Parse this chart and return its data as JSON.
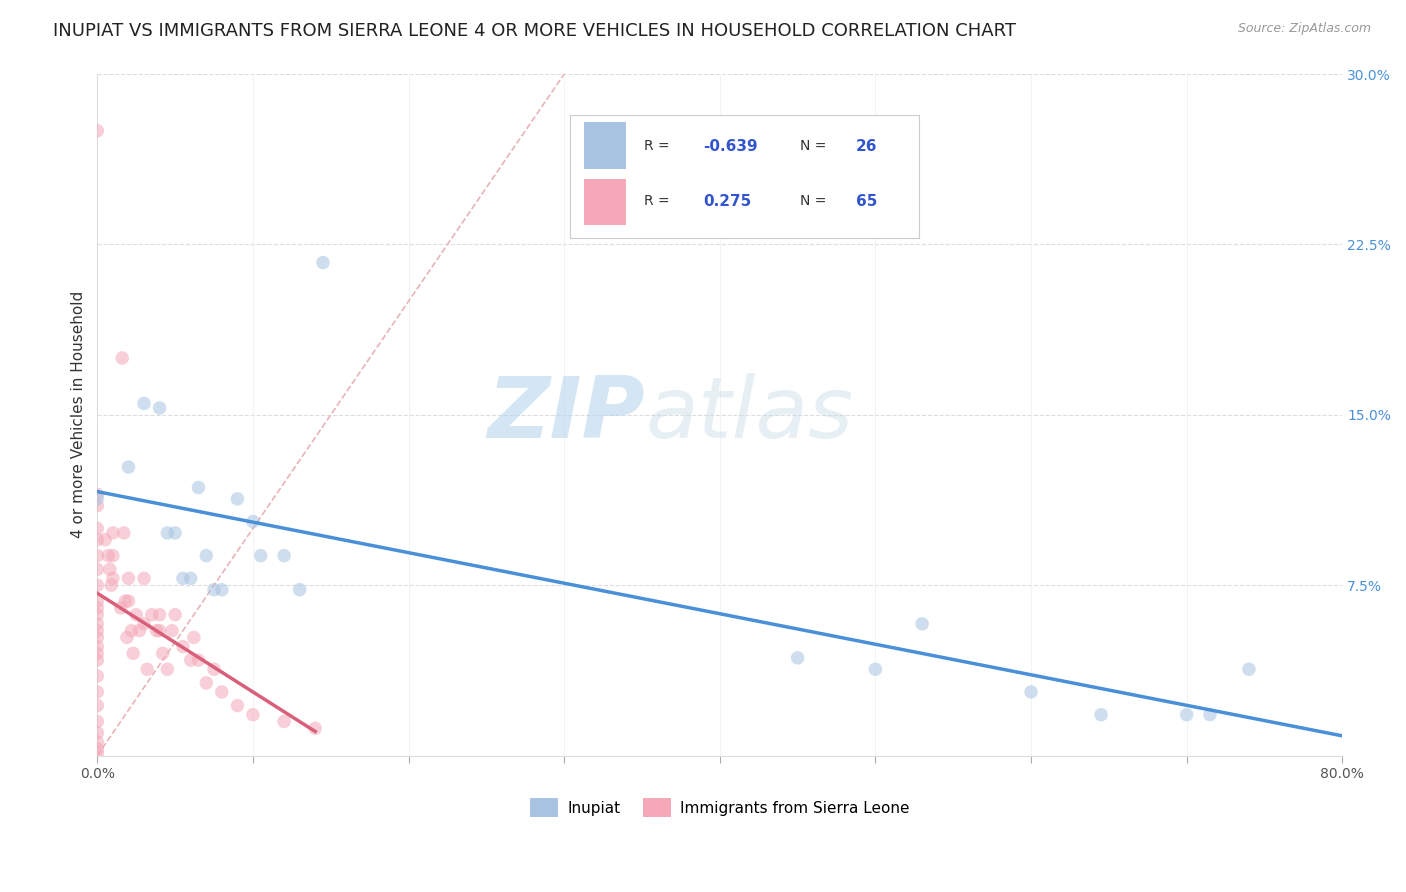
{
  "title": "INUPIAT VS IMMIGRANTS FROM SIERRA LEONE 4 OR MORE VEHICLES IN HOUSEHOLD CORRELATION CHART",
  "source": "Source: ZipAtlas.com",
  "ylabel": "4 or more Vehicles in Household",
  "xlim": [
    0.0,
    0.8
  ],
  "ylim": [
    0.0,
    0.3
  ],
  "xticks": [
    0.0,
    0.1,
    0.2,
    0.3,
    0.4,
    0.5,
    0.6,
    0.7,
    0.8
  ],
  "xticklabels": [
    "0.0%",
    "",
    "",
    "",
    "",
    "",
    "",
    "",
    "80.0%"
  ],
  "yticks_right": [
    0.0,
    0.075,
    0.15,
    0.225,
    0.3
  ],
  "yticklabels_right": [
    "",
    "7.5%",
    "15.0%",
    "22.5%",
    "30.0%"
  ],
  "inupiat_color": "#a8c4e0",
  "sierra_color": "#f4a8b8",
  "inupiat_line_color": "#4a90d9",
  "sierra_line_color": "#d9607a",
  "diagonal_color": "#e8b4b8",
  "inupiat_x": [
    0.0,
    0.02,
    0.03,
    0.04,
    0.045,
    0.05,
    0.055,
    0.06,
    0.065,
    0.07,
    0.075,
    0.08,
    0.09,
    0.1,
    0.105,
    0.12,
    0.13,
    0.145,
    0.45,
    0.5,
    0.53,
    0.6,
    0.645,
    0.7,
    0.715,
    0.74
  ],
  "inupiat_y": [
    0.113,
    0.127,
    0.155,
    0.153,
    0.098,
    0.098,
    0.078,
    0.078,
    0.118,
    0.088,
    0.073,
    0.073,
    0.113,
    0.103,
    0.088,
    0.088,
    0.073,
    0.217,
    0.043,
    0.038,
    0.058,
    0.028,
    0.018,
    0.018,
    0.018,
    0.038
  ],
  "sierra_x": [
    0.0,
    0.0,
    0.0,
    0.0,
    0.0,
    0.0,
    0.0,
    0.0,
    0.0,
    0.0,
    0.0,
    0.0,
    0.0,
    0.0,
    0.0,
    0.0,
    0.0,
    0.0,
    0.0,
    0.0,
    0.0,
    0.0,
    0.0,
    0.0,
    0.0,
    0.005,
    0.007,
    0.008,
    0.009,
    0.01,
    0.01,
    0.01,
    0.015,
    0.016,
    0.017,
    0.018,
    0.019,
    0.02,
    0.02,
    0.022,
    0.023,
    0.025,
    0.027,
    0.03,
    0.03,
    0.032,
    0.035,
    0.038,
    0.04,
    0.04,
    0.042,
    0.045,
    0.048,
    0.05,
    0.055,
    0.06,
    0.062,
    0.065,
    0.07,
    0.075,
    0.08,
    0.09,
    0.1,
    0.12,
    0.14
  ],
  "sierra_y": [
    0.275,
    0.115,
    0.11,
    0.1,
    0.095,
    0.088,
    0.082,
    0.075,
    0.068,
    0.062,
    0.055,
    0.048,
    0.042,
    0.035,
    0.028,
    0.022,
    0.015,
    0.01,
    0.006,
    0.003,
    0.001,
    0.065,
    0.058,
    0.052,
    0.045,
    0.095,
    0.088,
    0.082,
    0.075,
    0.098,
    0.088,
    0.078,
    0.065,
    0.175,
    0.098,
    0.068,
    0.052,
    0.078,
    0.068,
    0.055,
    0.045,
    0.062,
    0.055,
    0.078,
    0.058,
    0.038,
    0.062,
    0.055,
    0.062,
    0.055,
    0.045,
    0.038,
    0.055,
    0.062,
    0.048,
    0.042,
    0.052,
    0.042,
    0.032,
    0.038,
    0.028,
    0.022,
    0.018,
    0.015,
    0.012
  ],
  "watermark_zip": "ZIP",
  "watermark_atlas": "atlas",
  "marker_size": 95,
  "marker_alpha": 0.55,
  "title_fontsize": 13,
  "label_fontsize": 11,
  "tick_fontsize": 10,
  "legend_inupiat_R": "-0.639",
  "legend_inupiat_N": "26",
  "legend_sierra_R": "0.275",
  "legend_sierra_N": "65"
}
